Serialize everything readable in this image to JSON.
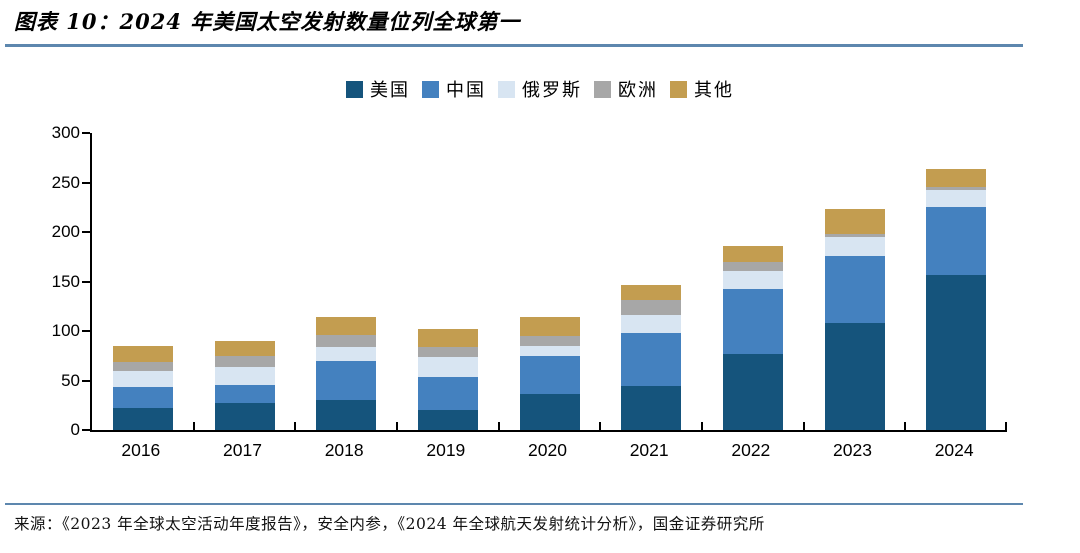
{
  "header": {
    "title": "图表 10：2024 年美国太空发射数量位列全球第一"
  },
  "colors": {
    "title_rule": "#5D87AE",
    "footer_rule": "#5D87AE",
    "axis": "#000000",
    "us": "#15547C",
    "china": "#4481BF",
    "russia": "#D8E5F2",
    "europe": "#A7A7A7",
    "other": "#C39D50"
  },
  "chart_data": {
    "type": "bar",
    "stacked": true,
    "title": "图表 10：2024 年美国太空发射数量位列全球第一",
    "categories": [
      "2016",
      "2017",
      "2018",
      "2019",
      "2020",
      "2021",
      "2022",
      "2023",
      "2024"
    ],
    "series": [
      {
        "name": "美国",
        "color": "#15547C",
        "values": [
          22,
          27,
          30,
          20,
          36,
          44,
          77,
          108,
          157
        ]
      },
      {
        "name": "中国",
        "color": "#4481BF",
        "values": [
          21,
          18,
          40,
          34,
          39,
          54,
          65,
          68,
          68
        ]
      },
      {
        "name": "俄罗斯",
        "color": "#D8E5F2",
        "values": [
          17,
          19,
          14,
          20,
          10,
          18,
          19,
          19,
          17
        ]
      },
      {
        "name": "欧洲",
        "color": "#A7A7A7",
        "values": [
          9,
          11,
          12,
          10,
          10,
          15,
          9,
          3,
          3
        ]
      },
      {
        "name": "其他",
        "color": "#C39D50",
        "values": [
          16,
          15,
          18,
          18,
          19,
          16,
          16,
          25,
          19
        ]
      }
    ],
    "totals": [
      85,
      90,
      114,
      102,
      114,
      147,
      186,
      223,
      264
    ],
    "ylim": [
      0,
      300
    ],
    "yticks": [
      0,
      50,
      100,
      150,
      200,
      250,
      300
    ],
    "xlabel": "",
    "ylabel": "",
    "grid": false,
    "legend_position": "top-center"
  },
  "footer": {
    "source": "来源：《2023 年全球太空活动年度报告》，安全内参，《2024 年全球航天发射统计分析》，国金证券研究所"
  }
}
